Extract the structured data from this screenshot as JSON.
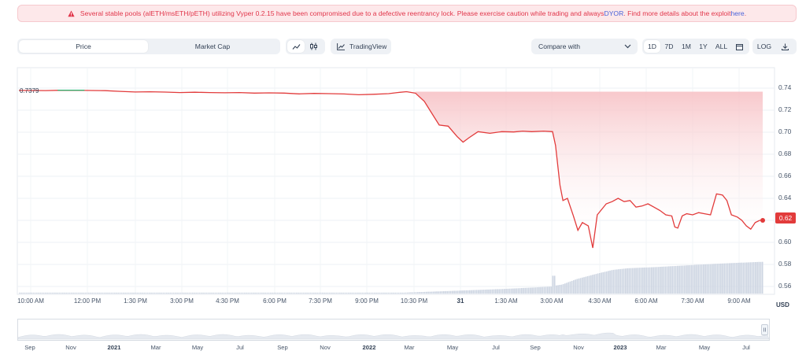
{
  "alert": {
    "message_part1": "Several stable pools (alETH/msETH/pETH) utilizing Vyper 0.2.15 have been compromised due to a defective reentrancy lock. Please exercise caution while trading and always ",
    "dyor_link": "DYOR",
    "message_part2": ". Find more details about the exploit ",
    "here_link": "here",
    "message_part3": ".",
    "icon": "warning-triangle-icon",
    "color": "#e1364b"
  },
  "toolbar": {
    "metric_tabs": [
      "Price",
      "Market Cap"
    ],
    "active_metric": "Price",
    "line_icon": "line-chart-icon",
    "candle_icon": "candlestick-icon",
    "tradingview_label": "TradingView",
    "compare_placeholder": "Compare with",
    "ranges": [
      "1D",
      "7D",
      "1M",
      "1Y",
      "ALL"
    ],
    "active_range": "1D",
    "calendar_icon": "calendar-icon",
    "log_label": "LOG",
    "download_icon": "download-icon"
  },
  "chart_data": {
    "type": "line",
    "title": "",
    "currency": "USD",
    "start_label": "0.7379",
    "current_label": "0.62",
    "line_color": "#e23b3b",
    "ylim": [
      0.55,
      0.75
    ],
    "y_ticks": [
      "0.74",
      "0.72",
      "0.70",
      "0.68",
      "0.66",
      "0.64",
      "0.62",
      "0.60",
      "0.58",
      "0.56"
    ],
    "x_ticks": [
      "10:00 AM",
      "12:00 PM",
      "1:30 PM",
      "3:00 PM",
      "4:30 PM",
      "6:00 PM",
      "7:30 PM",
      "9:00 PM",
      "10:30 PM",
      "31",
      "1:30 AM",
      "3:00 AM",
      "4:30 AM",
      "6:00 AM",
      "7:30 AM",
      "9:00 AM"
    ],
    "x_start_hour": 9.6,
    "x_end_hour": 33.85,
    "price_series": [
      [
        9.6,
        0.7379
      ],
      [
        10.5,
        0.7378
      ],
      [
        11.0,
        0.7381
      ],
      [
        11.8,
        0.7379
      ],
      [
        12.5,
        0.7377
      ],
      [
        13.0,
        0.7371
      ],
      [
        13.5,
        0.7365
      ],
      [
        14.0,
        0.7367
      ],
      [
        14.5,
        0.7364
      ],
      [
        15.0,
        0.736
      ],
      [
        15.5,
        0.7363
      ],
      [
        16.0,
        0.736
      ],
      [
        16.5,
        0.7358
      ],
      [
        17.0,
        0.736
      ],
      [
        17.5,
        0.7355
      ],
      [
        18.0,
        0.7357
      ],
      [
        18.5,
        0.7355
      ],
      [
        19.0,
        0.7348
      ],
      [
        19.5,
        0.7352
      ],
      [
        20.0,
        0.735
      ],
      [
        20.5,
        0.7347
      ],
      [
        21.0,
        0.734
      ],
      [
        21.5,
        0.7344
      ],
      [
        22.0,
        0.735
      ],
      [
        22.3,
        0.736
      ],
      [
        22.6,
        0.7368
      ],
      [
        22.9,
        0.7355
      ],
      [
        23.2,
        0.728
      ],
      [
        23.5,
        0.715
      ],
      [
        23.7,
        0.7065
      ],
      [
        24.0,
        0.7055
      ],
      [
        24.3,
        0.696
      ],
      [
        24.5,
        0.691
      ],
      [
        24.7,
        0.695
      ],
      [
        25.0,
        0.7005
      ],
      [
        25.4,
        0.699
      ],
      [
        25.8,
        0.7005
      ],
      [
        26.2,
        0.7002
      ],
      [
        26.5,
        0.701
      ],
      [
        26.8,
        0.7005
      ],
      [
        27.2,
        0.701
      ],
      [
        27.5,
        0.7005
      ],
      [
        27.6,
        0.688
      ],
      [
        27.75,
        0.652
      ],
      [
        27.85,
        0.638
      ],
      [
        28.0,
        0.64
      ],
      [
        28.2,
        0.624
      ],
      [
        28.35,
        0.611
      ],
      [
        28.5,
        0.618
      ],
      [
        28.7,
        0.615
      ],
      [
        28.85,
        0.595
      ],
      [
        29.0,
        0.625
      ],
      [
        29.15,
        0.63
      ],
      [
        29.3,
        0.635
      ],
      [
        29.5,
        0.637
      ],
      [
        29.7,
        0.64
      ],
      [
        29.9,
        0.637
      ],
      [
        30.1,
        0.638
      ],
      [
        30.3,
        0.632
      ],
      [
        30.5,
        0.633
      ],
      [
        30.7,
        0.635
      ],
      [
        30.9,
        0.632
      ],
      [
        31.1,
        0.629
      ],
      [
        31.3,
        0.625
      ],
      [
        31.5,
        0.624
      ],
      [
        31.6,
        0.614
      ],
      [
        31.7,
        0.613
      ],
      [
        31.85,
        0.624
      ],
      [
        32.0,
        0.626
      ],
      [
        32.2,
        0.625
      ],
      [
        32.4,
        0.627
      ],
      [
        32.6,
        0.626
      ],
      [
        32.8,
        0.625
      ],
      [
        33.0,
        0.644
      ],
      [
        33.2,
        0.643
      ],
      [
        33.35,
        0.638
      ],
      [
        33.5,
        0.625
      ],
      [
        33.7,
        0.623
      ],
      [
        33.85,
        0.62
      ],
      [
        34.0,
        0.615
      ],
      [
        34.15,
        0.612
      ],
      [
        34.3,
        0.618
      ],
      [
        34.45,
        0.62
      ],
      [
        34.55,
        0.62
      ]
    ],
    "volume_series": [
      [
        9.6,
        0.01
      ],
      [
        20.0,
        0.01
      ],
      [
        22.5,
        0.03
      ],
      [
        24.0,
        0.08
      ],
      [
        26.0,
        0.15
      ],
      [
        27.5,
        0.22
      ],
      [
        27.52,
        0.55
      ],
      [
        27.6,
        0.25
      ],
      [
        27.8,
        0.28
      ],
      [
        28.3,
        0.45
      ],
      [
        29.0,
        0.62
      ],
      [
        29.5,
        0.73
      ],
      [
        30.0,
        0.78
      ],
      [
        31.0,
        0.82
      ],
      [
        32.0,
        0.87
      ],
      [
        33.0,
        0.92
      ],
      [
        34.0,
        0.96
      ],
      [
        34.55,
        0.98
      ]
    ],
    "volume_max_label": ""
  },
  "navigator": {
    "ticks": [
      "Sep",
      "Nov",
      "2021",
      "Mar",
      "May",
      "Jul",
      "Sep",
      "Nov",
      "2022",
      "Mar",
      "May",
      "Jul",
      "Sep",
      "Nov",
      "2023",
      "Mar",
      "May",
      "Jul"
    ],
    "bold_ticks": [
      "2021",
      "2022",
      "2023"
    ],
    "handle_icon": "range-handle-icon"
  }
}
